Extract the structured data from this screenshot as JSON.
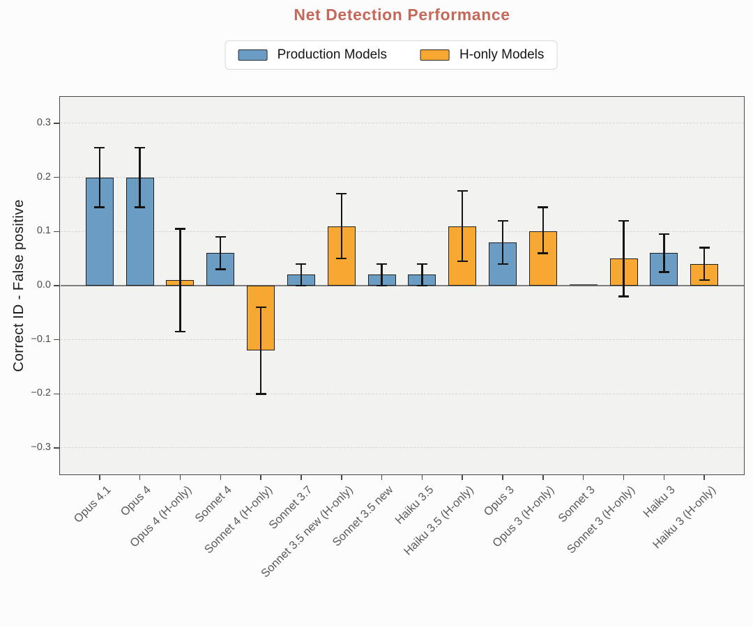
{
  "title": "Net Detection Performance",
  "legend": [
    {
      "label": "Production Models",
      "series": "production",
      "color": "#6b9cc4"
    },
    {
      "label": "H-only Models",
      "series": "h-only",
      "color": "#f7a833"
    }
  ],
  "colors": {
    "title": "#c4685a",
    "production": "#6b9cc4",
    "h_only": "#f7a833",
    "bar_edge": "#1e1e1e",
    "error_bar": "#141414",
    "plot_bg": "#f2f2f0",
    "grid": "#d4d4d2",
    "zero_line": "#7c7c7c",
    "frame": "#484848",
    "tick_text": "#4d4d4d",
    "x_label_text": "#5a5a5a",
    "page_bg": "#fcfcfc"
  },
  "chart_data": {
    "type": "bar",
    "title": "Net Detection Performance",
    "xlabel": "",
    "ylabel": "Correct ID - False positive",
    "ylim": [
      -0.35,
      0.35
    ],
    "yticks": [
      0.3,
      0.2,
      0.1,
      0.0,
      -0.1,
      -0.2,
      -0.3
    ],
    "ytick_labels": [
      "0.3",
      "0.2",
      "0.1",
      "0.0",
      "−0.1",
      "−0.2",
      "−0.3"
    ],
    "grid": "horizontal-dashed",
    "legend_position": "top-center",
    "series_names": [
      "Production Models",
      "H-only Models"
    ],
    "categories": [
      "Opus 4.1",
      "Opus 4",
      "Opus 4 (H-only)",
      "Sonnet 4",
      "Sonnet 4 (H-only)",
      "Sonnet 3.7",
      "Sonnet 3.5 new (H-only)",
      "Sonnet 3.5 new",
      "Haiku 3.5",
      "Haiku 3.5 (H-only)",
      "Opus 3",
      "Opus 3 (H-only)",
      "Sonnet 3",
      "Sonnet 3 (H-only)",
      "Haiku 3",
      "Haiku 3 (H-only)"
    ],
    "bars": [
      {
        "label": "Opus 4.1",
        "series": "production",
        "value": 0.2,
        "err_low": 0.145,
        "err_high": 0.255
      },
      {
        "label": "Opus 4",
        "series": "production",
        "value": 0.2,
        "err_low": 0.145,
        "err_high": 0.255
      },
      {
        "label": "Opus 4 (H-only)",
        "series": "h-only",
        "value": 0.01,
        "err_low": -0.085,
        "err_high": 0.105
      },
      {
        "label": "Sonnet 4",
        "series": "production",
        "value": 0.06,
        "err_low": 0.03,
        "err_high": 0.09
      },
      {
        "label": "Sonnet 4 (H-only)",
        "series": "h-only",
        "value": -0.12,
        "err_low": -0.2,
        "err_high": -0.04
      },
      {
        "label": "Sonnet 3.7",
        "series": "production",
        "value": 0.02,
        "err_low": 0.0,
        "err_high": 0.04
      },
      {
        "label": "Sonnet 3.5 new (H-only)",
        "series": "h-only",
        "value": 0.11,
        "err_low": 0.05,
        "err_high": 0.17
      },
      {
        "label": "Sonnet 3.5 new",
        "series": "production",
        "value": 0.02,
        "err_low": 0.0,
        "err_high": 0.04
      },
      {
        "label": "Haiku 3.5",
        "series": "production",
        "value": 0.02,
        "err_low": 0.0,
        "err_high": 0.04
      },
      {
        "label": "Haiku 3.5 (H-only)",
        "series": "h-only",
        "value": 0.11,
        "err_low": 0.045,
        "err_high": 0.175
      },
      {
        "label": "Opus 3",
        "series": "production",
        "value": 0.08,
        "err_low": 0.04,
        "err_high": 0.12
      },
      {
        "label": "Opus 3 (H-only)",
        "series": "h-only",
        "value": 0.1,
        "err_low": 0.06,
        "err_high": 0.145
      },
      {
        "label": "Sonnet 3",
        "series": "production",
        "value": 0.0,
        "err_low": null,
        "err_high": null
      },
      {
        "label": "Sonnet 3 (H-only)",
        "series": "h-only",
        "value": 0.05,
        "err_low": -0.02,
        "err_high": 0.12
      },
      {
        "label": "Haiku 3",
        "series": "production",
        "value": 0.06,
        "err_low": 0.025,
        "err_high": 0.095
      },
      {
        "label": "Haiku 3 (H-only)",
        "series": "h-only",
        "value": 0.04,
        "err_low": 0.01,
        "err_high": 0.07
      }
    ]
  }
}
